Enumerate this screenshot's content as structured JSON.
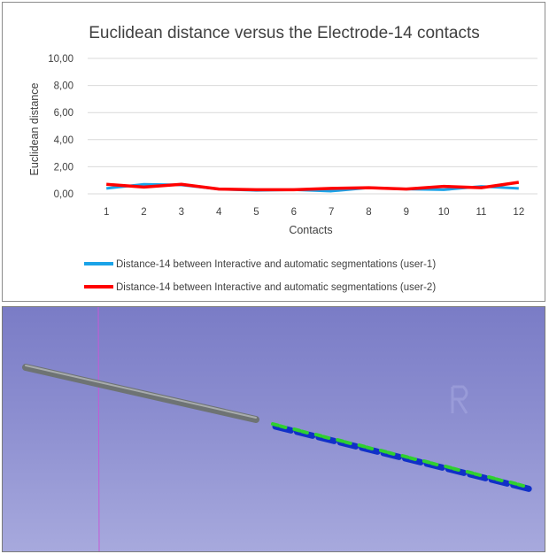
{
  "chart_data": {
    "type": "line",
    "title": "Euclidean distance versus the Electrode-14 contacts",
    "xlabel": "Contacts",
    "ylabel": "Euclidean distance",
    "categories": [
      "1",
      "2",
      "3",
      "4",
      "5",
      "6",
      "7",
      "8",
      "9",
      "10",
      "11",
      "12"
    ],
    "y_ticks": [
      "0,00",
      "2,00",
      "4,00",
      "6,00",
      "8,00",
      "10,00"
    ],
    "ylim": [
      0,
      10
    ],
    "grid": true,
    "legend_position": "bottom",
    "series": [
      {
        "name": "Distance-14 between Interactive and automatic segmentations (user-1)",
        "color": "#1aa3e8",
        "values": [
          0.4,
          0.7,
          0.65,
          0.35,
          0.25,
          0.3,
          0.2,
          0.45,
          0.35,
          0.3,
          0.55,
          0.4
        ]
      },
      {
        "name": "Distance-14 between Interactive and automatic segmentations (user-2)",
        "color": "#ff0000",
        "values": [
          0.7,
          0.5,
          0.7,
          0.35,
          0.3,
          0.3,
          0.4,
          0.45,
          0.35,
          0.55,
          0.45,
          0.85
        ]
      }
    ]
  },
  "scene": {
    "background_color": "#8587cc",
    "guide_line_color": "#c45ad6",
    "shaft_color": "#6e7374",
    "contact_colors": [
      "#2fd02f",
      "#1030c8"
    ]
  }
}
